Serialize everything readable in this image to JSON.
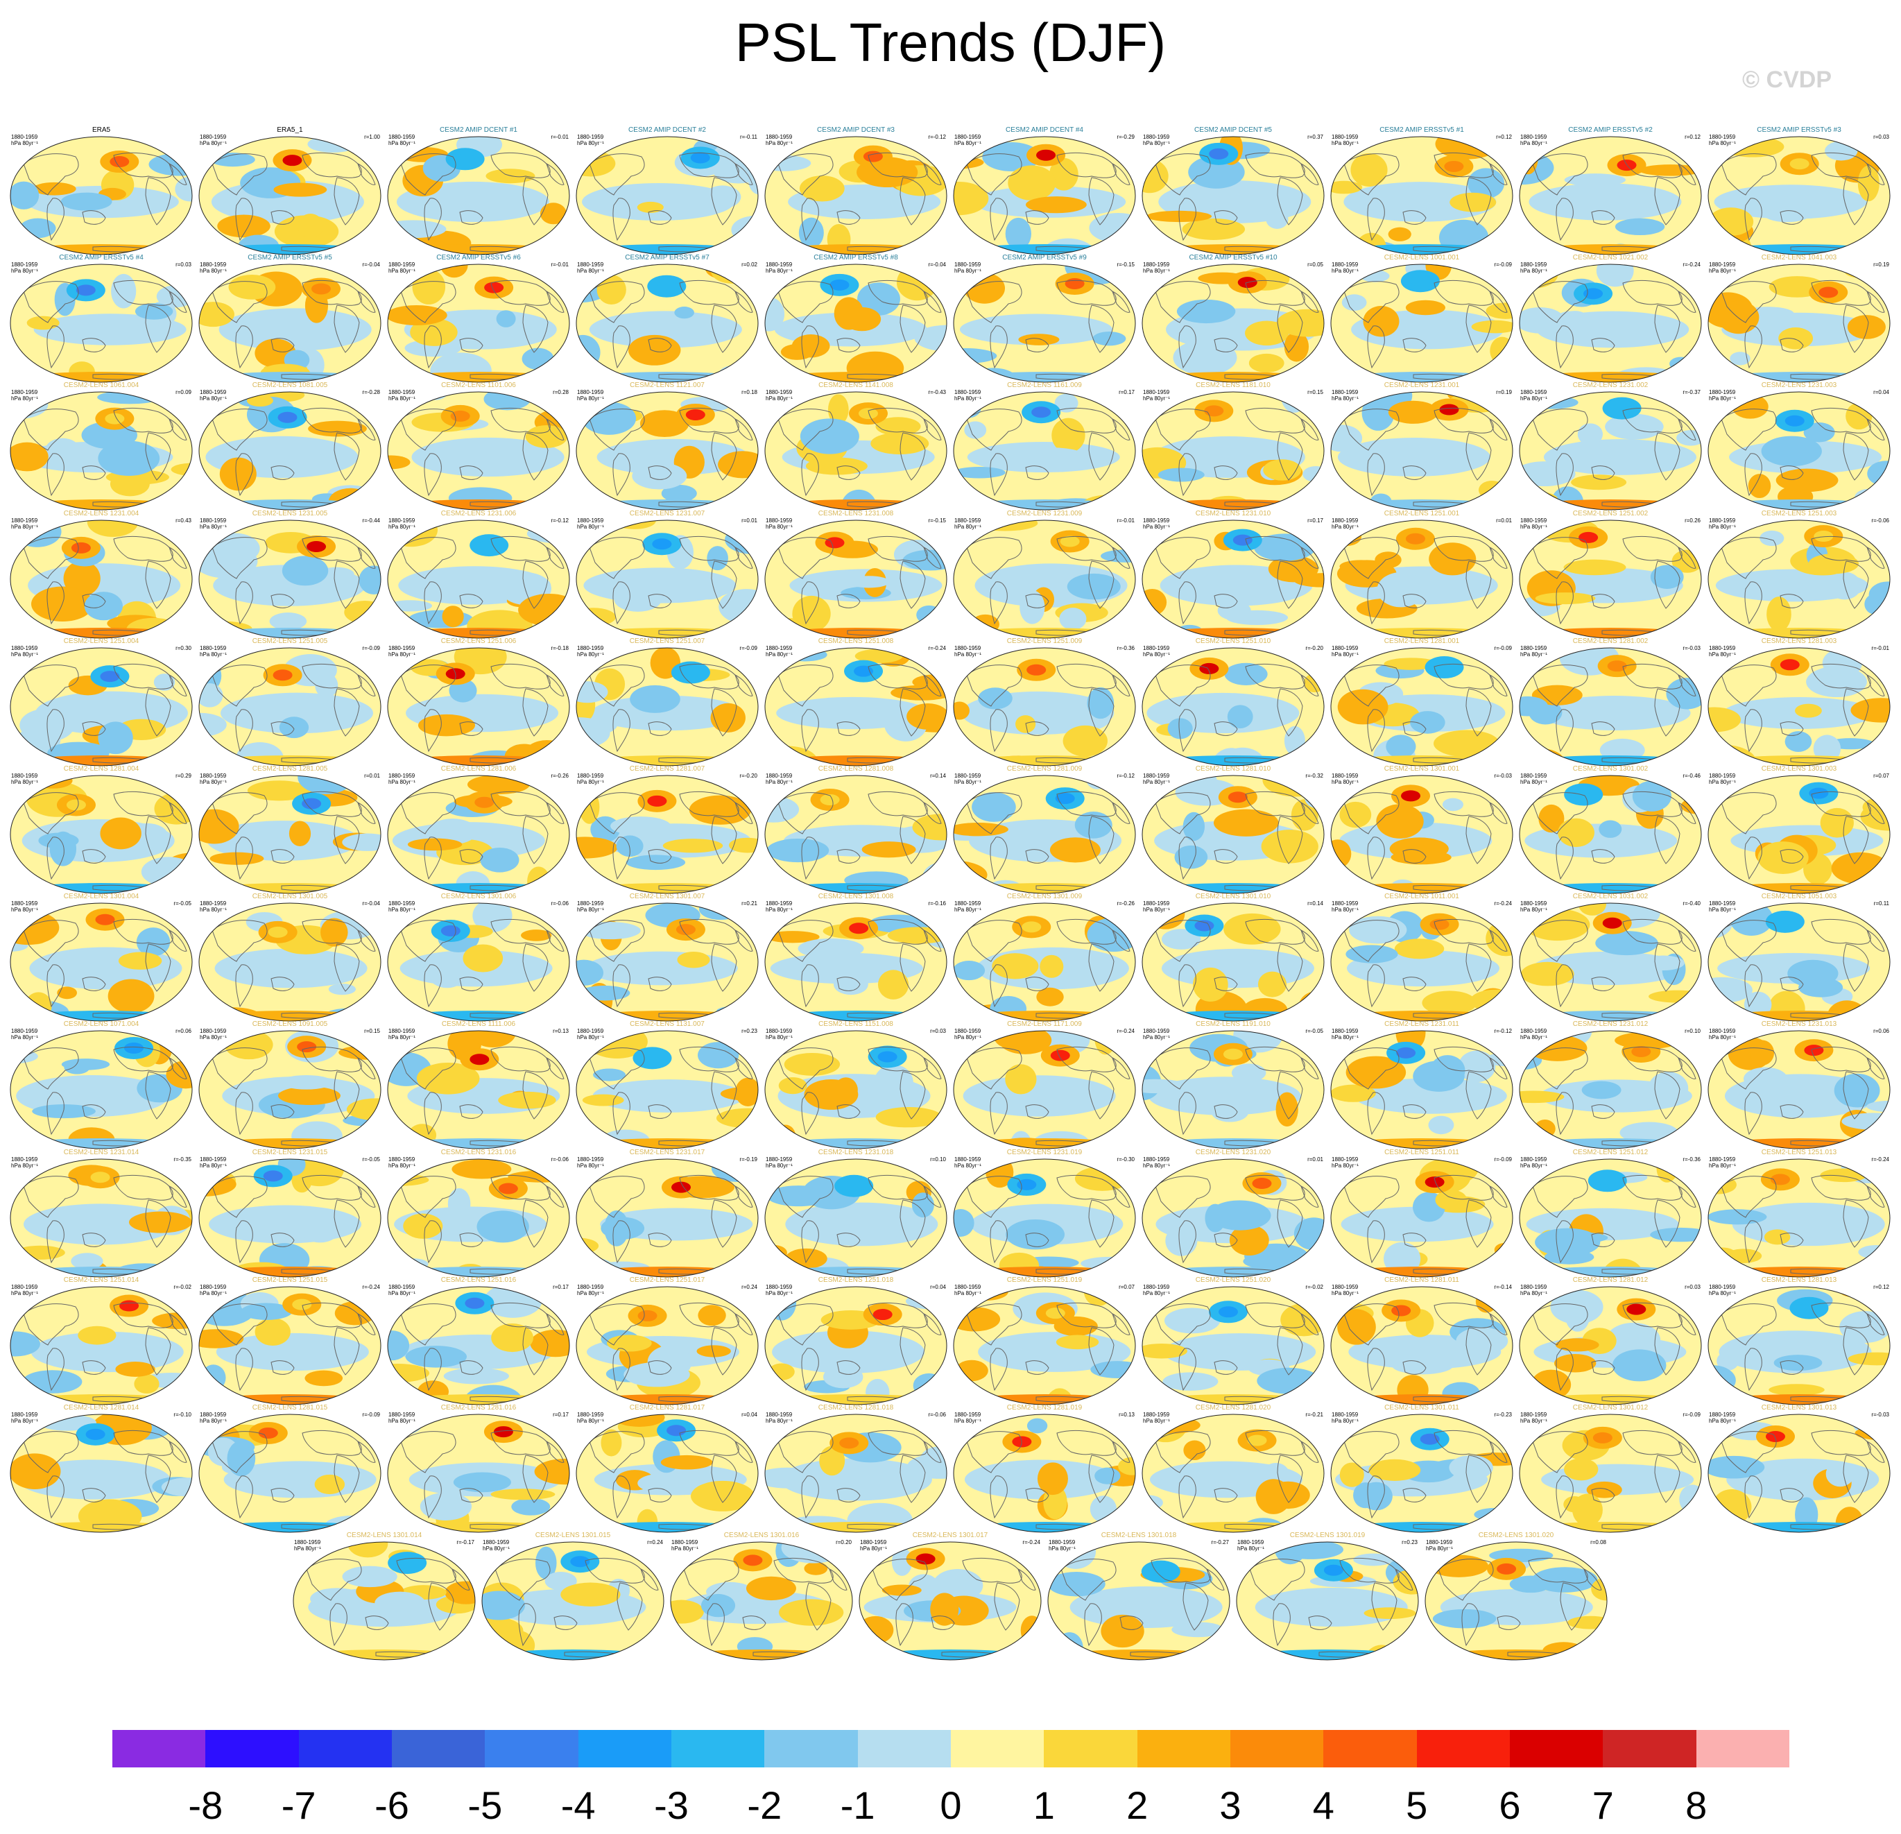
{
  "title": "PSL Trends (DJF)",
  "watermark": "© CVDP",
  "colors": {
    "scale": [
      "#8a2be2",
      "#2d0fff",
      "#2432f2",
      "#3a64d8",
      "#3a80ee",
      "#1a9cf8",
      "#2ab8f0",
      "#80c8ee",
      "#b6def0",
      "#fff5a0",
      "#fad73a",
      "#fbb00f",
      "#fb8b0a",
      "#fb5d0c",
      "#f8200c",
      "#da0000",
      "#cf2525",
      "#fbb0b0"
    ],
    "title_amip": "#2a7f9a",
    "title_lens": "#d9b85a",
    "title_obs": "#000000"
  },
  "chart_data": {
    "type": "map",
    "variable": "PSL",
    "season": "DJF",
    "units": "hPa 80yr⁻¹",
    "period": "1880-1959",
    "colorbar": {
      "levels": [
        "-8",
        "-7",
        "-6",
        "-5",
        "-4",
        "-3",
        "-2",
        "-1",
        "0",
        "1",
        "2",
        "3",
        "4",
        "5",
        "6",
        "7",
        "8"
      ]
    },
    "panels": [
      {
        "title": "ERA5",
        "kind": "obs",
        "r": ""
      },
      {
        "title": "ERA5_1",
        "kind": "obs",
        "r": "r=1.00"
      },
      {
        "title": "CESM2 AMIP DCENT #1",
        "kind": "amip",
        "r": "r=-0.01"
      },
      {
        "title": "CESM2 AMIP DCENT #2",
        "kind": "amip",
        "r": "r=-0.11"
      },
      {
        "title": "CESM2 AMIP DCENT #3",
        "kind": "amip",
        "r": "r=-0.12"
      },
      {
        "title": "CESM2 AMIP DCENT #4",
        "kind": "amip",
        "r": "r=-0.29"
      },
      {
        "title": "CESM2 AMIP DCENT #5",
        "kind": "amip",
        "r": "r=0.37"
      },
      {
        "title": "CESM2 AMIP ERSSTv5 #1",
        "kind": "amip",
        "r": "r=0.12"
      },
      {
        "title": "CESM2 AMIP ERSSTv5 #2",
        "kind": "amip",
        "r": "r=0.12"
      },
      {
        "title": "CESM2 AMIP ERSSTv5 #3",
        "kind": "amip",
        "r": "r=0.03"
      },
      {
        "title": "CESM2 AMIP ERSSTv5 #4",
        "kind": "amip",
        "r": "r=0.03"
      },
      {
        "title": "CESM2 AMIP ERSSTv5 #5",
        "kind": "amip",
        "r": "r=-0.04"
      },
      {
        "title": "CESM2 AMIP ERSSTv5 #6",
        "kind": "amip",
        "r": "r=-0.01"
      },
      {
        "title": "CESM2 AMIP ERSSTv5 #7",
        "kind": "amip",
        "r": "r=0.02"
      },
      {
        "title": "CESM2 AMIP ERSSTv5 #8",
        "kind": "amip",
        "r": "r=-0.04"
      },
      {
        "title": "CESM2 AMIP ERSSTv5 #9",
        "kind": "amip",
        "r": "r=-0.15"
      },
      {
        "title": "CESM2 AMIP ERSSTv5 #10",
        "kind": "amip",
        "r": "r=0.05"
      },
      {
        "title": "CESM2-LENS 1001.001",
        "kind": "lens",
        "r": "r=-0.09"
      },
      {
        "title": "CESM2-LENS 1021.002",
        "kind": "lens",
        "r": "r=-0.24"
      },
      {
        "title": "CESM2-LENS 1041.003",
        "kind": "lens",
        "r": "r=0.19"
      },
      {
        "title": "CESM2-LENS 1061.004",
        "kind": "lens",
        "r": "r=0.09"
      },
      {
        "title": "CESM2-LENS 1081.005",
        "kind": "lens",
        "r": "r=-0.28"
      },
      {
        "title": "CESM2-LENS 1101.006",
        "kind": "lens",
        "r": "r=0.28"
      },
      {
        "title": "CESM2-LENS 1121.007",
        "kind": "lens",
        "r": "r=0.18"
      },
      {
        "title": "CESM2-LENS 1141.008",
        "kind": "lens",
        "r": "r=-0.43"
      },
      {
        "title": "CESM2-LENS 1161.009",
        "kind": "lens",
        "r": "r=0.17"
      },
      {
        "title": "CESM2-LENS 1181.010",
        "kind": "lens",
        "r": "r=0.15"
      },
      {
        "title": "CESM2-LENS 1231.001",
        "kind": "lens",
        "r": "r=0.19"
      },
      {
        "title": "CESM2-LENS 1231.002",
        "kind": "lens",
        "r": "r=-0.37"
      },
      {
        "title": "CESM2-LENS 1231.003",
        "kind": "lens",
        "r": "r=0.04"
      },
      {
        "title": "CESM2-LENS 1231.004",
        "kind": "lens",
        "r": "r=0.43"
      },
      {
        "title": "CESM2-LENS 1231.005",
        "kind": "lens",
        "r": "r=-0.44"
      },
      {
        "title": "CESM2-LENS 1231.006",
        "kind": "lens",
        "r": "r=-0.12"
      },
      {
        "title": "CESM2-LENS 1231.007",
        "kind": "lens",
        "r": "r=0.01"
      },
      {
        "title": "CESM2-LENS 1231.008",
        "kind": "lens",
        "r": "r=-0.15"
      },
      {
        "title": "CESM2-LENS 1231.009",
        "kind": "lens",
        "r": "r=-0.01"
      },
      {
        "title": "CESM2-LENS 1231.010",
        "kind": "lens",
        "r": "r=0.17"
      },
      {
        "title": "CESM2-LENS 1251.001",
        "kind": "lens",
        "r": "r=0.01"
      },
      {
        "title": "CESM2-LENS 1251.002",
        "kind": "lens",
        "r": "r=0.26"
      },
      {
        "title": "CESM2-LENS 1251.003",
        "kind": "lens",
        "r": "r=-0.06"
      },
      {
        "title": "CESM2-LENS 1251.004",
        "kind": "lens",
        "r": "r=0.30"
      },
      {
        "title": "CESM2-LENS 1251.005",
        "kind": "lens",
        "r": "r=-0.09"
      },
      {
        "title": "CESM2-LENS 1251.006",
        "kind": "lens",
        "r": "r=-0.18"
      },
      {
        "title": "CESM2-LENS 1251.007",
        "kind": "lens",
        "r": "r=-0.09"
      },
      {
        "title": "CESM2-LENS 1251.008",
        "kind": "lens",
        "r": "r=-0.24"
      },
      {
        "title": "CESM2-LENS 1251.009",
        "kind": "lens",
        "r": "r=-0.36"
      },
      {
        "title": "CESM2-LENS 1251.010",
        "kind": "lens",
        "r": "r=-0.20"
      },
      {
        "title": "CESM2-LENS 1281.001",
        "kind": "lens",
        "r": "r=-0.09"
      },
      {
        "title": "CESM2-LENS 1281.002",
        "kind": "lens",
        "r": "r=-0.03"
      },
      {
        "title": "CESM2-LENS 1281.003",
        "kind": "lens",
        "r": "r=-0.01"
      },
      {
        "title": "CESM2-LENS 1281.004",
        "kind": "lens",
        "r": "r=0.29"
      },
      {
        "title": "CESM2-LENS 1281.005",
        "kind": "lens",
        "r": "r=0.01"
      },
      {
        "title": "CESM2-LENS 1281.006",
        "kind": "lens",
        "r": "r=-0.26"
      },
      {
        "title": "CESM2-LENS 1281.007",
        "kind": "lens",
        "r": "r=-0.20"
      },
      {
        "title": "CESM2-LENS 1281.008",
        "kind": "lens",
        "r": "r=0.14"
      },
      {
        "title": "CESM2-LENS 1281.009",
        "kind": "lens",
        "r": "r=-0.12"
      },
      {
        "title": "CESM2-LENS 1281.010",
        "kind": "lens",
        "r": "r=-0.32"
      },
      {
        "title": "CESM2-LENS 1301.001",
        "kind": "lens",
        "r": "r=-0.03"
      },
      {
        "title": "CESM2-LENS 1301.002",
        "kind": "lens",
        "r": "r=-0.46"
      },
      {
        "title": "CESM2-LENS 1301.003",
        "kind": "lens",
        "r": "r=0.07"
      },
      {
        "title": "CESM2-LENS 1301.004",
        "kind": "lens",
        "r": "r=-0.05"
      },
      {
        "title": "CESM2-LENS 1301.005",
        "kind": "lens",
        "r": "r=-0.04"
      },
      {
        "title": "CESM2-LENS 1301.006",
        "kind": "lens",
        "r": "r=-0.06"
      },
      {
        "title": "CESM2-LENS 1301.007",
        "kind": "lens",
        "r": "r=0.21"
      },
      {
        "title": "CESM2-LENS 1301.008",
        "kind": "lens",
        "r": "r=-0.16"
      },
      {
        "title": "CESM2-LENS 1301.009",
        "kind": "lens",
        "r": "r=-0.26"
      },
      {
        "title": "CESM2-LENS 1301.010",
        "kind": "lens",
        "r": "r=0.14"
      },
      {
        "title": "CESM2-LENS 1011.001",
        "kind": "lens",
        "r": "r=-0.24"
      },
      {
        "title": "CESM2-LENS 1031.002",
        "kind": "lens",
        "r": "r=-0.40"
      },
      {
        "title": "CESM2-LENS 1051.003",
        "kind": "lens",
        "r": "r=0.11"
      },
      {
        "title": "CESM2-LENS 1071.004",
        "kind": "lens",
        "r": "r=0.06"
      },
      {
        "title": "CESM2-LENS 1091.005",
        "kind": "lens",
        "r": "r=0.15"
      },
      {
        "title": "CESM2-LENS 1111.006",
        "kind": "lens",
        "r": "r=0.13"
      },
      {
        "title": "CESM2-LENS 1131.007",
        "kind": "lens",
        "r": "r=0.23"
      },
      {
        "title": "CESM2-LENS 1151.008",
        "kind": "lens",
        "r": "r=0.03"
      },
      {
        "title": "CESM2-LENS 1171.009",
        "kind": "lens",
        "r": "r=-0.24"
      },
      {
        "title": "CESM2-LENS 1191.010",
        "kind": "lens",
        "r": "r=-0.05"
      },
      {
        "title": "CESM2-LENS 1231.011",
        "kind": "lens",
        "r": "r=-0.12"
      },
      {
        "title": "CESM2-LENS 1231.012",
        "kind": "lens",
        "r": "r=0.10"
      },
      {
        "title": "CESM2-LENS 1231.013",
        "kind": "lens",
        "r": "r=0.06"
      },
      {
        "title": "CESM2-LENS 1231.014",
        "kind": "lens",
        "r": "r=-0.35"
      },
      {
        "title": "CESM2-LENS 1231.015",
        "kind": "lens",
        "r": "r=-0.05"
      },
      {
        "title": "CESM2-LENS 1231.016",
        "kind": "lens",
        "r": "r=-0.06"
      },
      {
        "title": "CESM2-LENS 1231.017",
        "kind": "lens",
        "r": "r=-0.19"
      },
      {
        "title": "CESM2-LENS 1231.018",
        "kind": "lens",
        "r": "r=0.10"
      },
      {
        "title": "CESM2-LENS 1231.019",
        "kind": "lens",
        "r": "r=-0.30"
      },
      {
        "title": "CESM2-LENS 1231.020",
        "kind": "lens",
        "r": "r=0.01"
      },
      {
        "title": "CESM2-LENS 1251.011",
        "kind": "lens",
        "r": "r=-0.09"
      },
      {
        "title": "CESM2-LENS 1251.012",
        "kind": "lens",
        "r": "r=-0.36"
      },
      {
        "title": "CESM2-LENS 1251.013",
        "kind": "lens",
        "r": "r=-0.24"
      },
      {
        "title": "CESM2-LENS 1251.014",
        "kind": "lens",
        "r": "r=-0.02"
      },
      {
        "title": "CESM2-LENS 1251.015",
        "kind": "lens",
        "r": "r=-0.24"
      },
      {
        "title": "CESM2-LENS 1251.016",
        "kind": "lens",
        "r": "r=0.17"
      },
      {
        "title": "CESM2-LENS 1251.017",
        "kind": "lens",
        "r": "r=0.24"
      },
      {
        "title": "CESM2-LENS 1251.018",
        "kind": "lens",
        "r": "r=0.04"
      },
      {
        "title": "CESM2-LENS 1251.019",
        "kind": "lens",
        "r": "r=0.07"
      },
      {
        "title": "CESM2-LENS 1251.020",
        "kind": "lens",
        "r": "r=-0.02"
      },
      {
        "title": "CESM2-LENS 1281.011",
        "kind": "lens",
        "r": "r=-0.14"
      },
      {
        "title": "CESM2-LENS 1281.012",
        "kind": "lens",
        "r": "r=0.03"
      },
      {
        "title": "CESM2-LENS 1281.013",
        "kind": "lens",
        "r": "r=0.12"
      },
      {
        "title": "CESM2-LENS 1281.014",
        "kind": "lens",
        "r": "r=-0.10"
      },
      {
        "title": "CESM2-LENS 1281.015",
        "kind": "lens",
        "r": "r=-0.09"
      },
      {
        "title": "CESM2-LENS 1281.016",
        "kind": "lens",
        "r": "r=0.17"
      },
      {
        "title": "CESM2-LENS 1281.017",
        "kind": "lens",
        "r": "r=0.04"
      },
      {
        "title": "CESM2-LENS 1281.018",
        "kind": "lens",
        "r": "r=-0.06"
      },
      {
        "title": "CESM2-LENS 1281.019",
        "kind": "lens",
        "r": "r=0.13"
      },
      {
        "title": "CESM2-LENS 1281.020",
        "kind": "lens",
        "r": "r=-0.21"
      },
      {
        "title": "CESM2-LENS 1301.011",
        "kind": "lens",
        "r": "r=-0.23"
      },
      {
        "title": "CESM2-LENS 1301.012",
        "kind": "lens",
        "r": "r=-0.09"
      },
      {
        "title": "CESM2-LENS 1301.013",
        "kind": "lens",
        "r": "r=-0.03"
      },
      {
        "title": "CESM2-LENS 1301.014",
        "kind": "lens",
        "r": "r=-0.17"
      },
      {
        "title": "CESM2-LENS 1301.015",
        "kind": "lens",
        "r": "r=0.24"
      },
      {
        "title": "CESM2-LENS 1301.016",
        "kind": "lens",
        "r": "r=0.20"
      },
      {
        "title": "CESM2-LENS 1301.017",
        "kind": "lens",
        "r": "r=-0.24"
      },
      {
        "title": "CESM2-LENS 1301.018",
        "kind": "lens",
        "r": "r=-0.27"
      },
      {
        "title": "CESM2-LENS 1301.019",
        "kind": "lens",
        "r": "r=0.23"
      },
      {
        "title": "CESM2-LENS 1301.020",
        "kind": "lens",
        "r": "r=0.08"
      }
    ]
  }
}
